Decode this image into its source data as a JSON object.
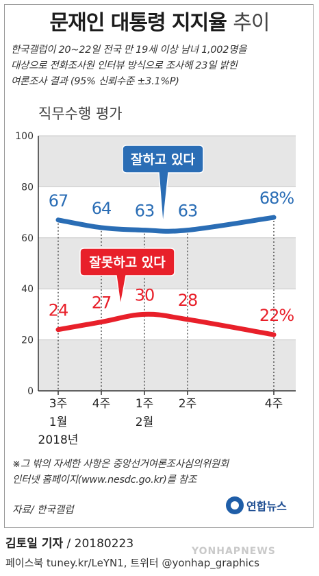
{
  "header": {
    "title_main": "문재인 대통령 지지율",
    "title_light": "추이",
    "description_line1": "한국갤럽이 20~22일 전국 만 19세 이상 남녀 1,002명을",
    "description_line2": "대상으로 전화조사원 인터뷰 방식으로 조사해 23일 밝힌",
    "description_line3": "여론조사 결과 (95% 신뢰수준 ±3.1%P)"
  },
  "chart_data": {
    "type": "line",
    "title": "직무수행 평가",
    "categories": [
      "1월 3주",
      "1월 4주",
      "2월 1주",
      "2월 2주",
      "2월 4주"
    ],
    "x_positions": [
      0,
      1,
      2,
      3,
      5
    ],
    "x_tick_labels": [
      "3주",
      "4주",
      "1주",
      "2주",
      "4주"
    ],
    "month_labels": [
      {
        "label": "1월",
        "x": 0
      },
      {
        "label": "2월",
        "x": 2
      }
    ],
    "year_label": "2018년",
    "ylim": [
      0,
      100
    ],
    "y_ticks": [
      0,
      20,
      40,
      60,
      80,
      100
    ],
    "grid_bands": true,
    "series": [
      {
        "name": "잘하고 있다",
        "color": "#2a6db5",
        "values": [
          67,
          64,
          63,
          63,
          68
        ],
        "labels": [
          "67",
          "64",
          "63",
          "63",
          "68%"
        ]
      },
      {
        "name": "잘못하고 있다",
        "color": "#e8202a",
        "values": [
          24,
          27,
          30,
          28,
          22
        ],
        "labels": [
          "24",
          "27",
          "30",
          "28",
          "22%"
        ]
      }
    ]
  },
  "footer": {
    "note_line1": "※그 밖의 자세한 사항은 중앙선거여론조사심의위원회",
    "note_line2": "인터넷 홈페이지(www.nesdc.go.kr)를 참조",
    "source": "자료/ 한국갤럽",
    "logo_text": "연합뉴스",
    "reporter": "김토일 기자",
    "date": "/ 20180223",
    "social": "페이스북 tuney.kr/LeYN1, 트위터 @yonhap_graphics",
    "watermark": "YONHAPNEWS"
  }
}
